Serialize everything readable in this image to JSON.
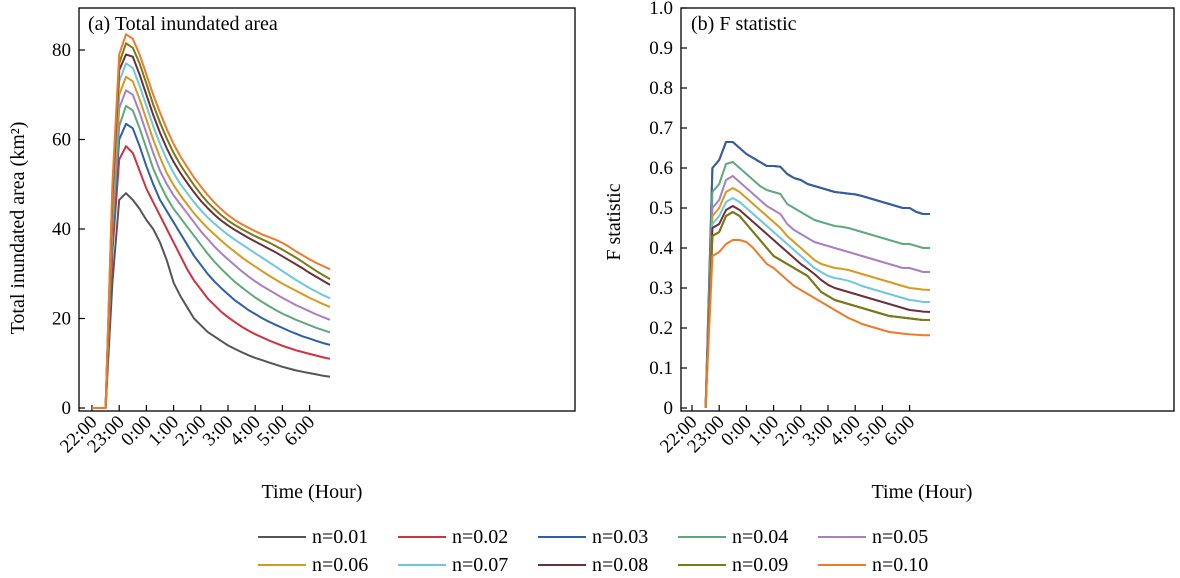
{
  "chart_data": [
    {
      "type": "line",
      "title": "(a) Total inundated area",
      "xlabel": "Time (Hour)",
      "ylabel": "Total inundated area (km²)",
      "x": [
        "22:00",
        "22:15",
        "22:30",
        "22:45",
        "23:00",
        "23:15",
        "23:30",
        "23:45",
        "0:00",
        "0:15",
        "0:30",
        "0:45",
        "1:00",
        "1:15",
        "1:30",
        "1:45",
        "2:00",
        "2:15",
        "2:30",
        "2:45",
        "3:00",
        "3:15",
        "3:30",
        "3:45",
        "4:00",
        "4:15",
        "4:30",
        "4:45",
        "5:00",
        "5:15",
        "5:30",
        "5:45",
        "6:00",
        "6:15",
        "6:30",
        "6:45"
      ],
      "xticks": [
        "22:00",
        "23:00",
        "0:00",
        "1:00",
        "2:00",
        "3:00",
        "4:00",
        "5:00",
        "6:00"
      ],
      "yticks": [
        0,
        20,
        40,
        60,
        80
      ],
      "ylim": [
        0,
        88
      ],
      "grid": false,
      "series": [
        {
          "name": "n=0.01",
          "values": [
            0,
            0,
            0,
            28,
            46.5,
            48,
            46.5,
            44.5,
            42,
            40,
            37,
            33,
            28,
            25,
            22.5,
            20,
            18.5,
            17,
            16,
            15,
            14,
            13.2,
            12.5,
            11.8,
            11.2,
            10.7,
            10.2,
            9.7,
            9.2,
            8.8,
            8.4,
            8.1,
            7.8,
            7.5,
            7.2,
            7.0
          ]
        },
        {
          "name": "n=0.02",
          "values": [
            0,
            0,
            0,
            35,
            55.5,
            58.5,
            57,
            53,
            49,
            46,
            43,
            40,
            37,
            34,
            31,
            28.5,
            26.5,
            24.5,
            23,
            21.5,
            20.3,
            19.2,
            18.2,
            17.3,
            16.5,
            15.8,
            15.1,
            14.5,
            13.9,
            13.4,
            12.9,
            12.5,
            12.1,
            11.7,
            11.3,
            11.0
          ]
        },
        {
          "name": "n=0.03",
          "values": [
            0,
            0,
            0,
            38,
            60,
            63.5,
            62.5,
            58.5,
            54,
            50,
            46.5,
            44,
            41.5,
            39,
            36.5,
            34,
            32,
            30,
            28.3,
            26.8,
            25.4,
            24.1,
            23,
            21.9,
            21,
            20.1,
            19.3,
            18.6,
            17.9,
            17.2,
            16.6,
            16.0,
            15.5,
            15.0,
            14.5,
            14.1
          ]
        },
        {
          "name": "n=0.04",
          "values": [
            0,
            0,
            0,
            40,
            63,
            67.5,
            66.5,
            62.5,
            58,
            53.5,
            50,
            47,
            44.5,
            42.5,
            40.5,
            38.5,
            36.5,
            34.5,
            32.7,
            31.1,
            29.6,
            28.2,
            27,
            25.8,
            24.7,
            23.7,
            22.8,
            21.9,
            21.1,
            20.4,
            19.7,
            19.1,
            18.5,
            17.9,
            17.4,
            16.9
          ]
        },
        {
          "name": "n=0.05",
          "values": [
            0,
            0,
            0,
            42,
            67,
            71,
            70,
            66,
            61.5,
            57,
            53,
            50,
            47.5,
            45.5,
            43.5,
            41.5,
            39.5,
            37.8,
            36.1,
            34.6,
            33.2,
            31.9,
            30.6,
            29.4,
            28.3,
            27.3,
            26.4,
            25.5,
            24.6,
            23.8,
            23.0,
            22.3,
            21.6,
            20.9,
            20.3,
            19.7
          ]
        },
        {
          "name": "n=0.06",
          "values": [
            0,
            0,
            0,
            44,
            70,
            74,
            73,
            69,
            64.5,
            60,
            56,
            52.5,
            49.8,
            47.5,
            45.5,
            43.5,
            41.8,
            40.2,
            38.8,
            37.4,
            36.1,
            34.9,
            33.7,
            32.6,
            31.6,
            30.6,
            29.6,
            28.7,
            27.8,
            27.0,
            26.2,
            25.4,
            24.6,
            23.9,
            23.2,
            22.6
          ]
        },
        {
          "name": "n=0.07",
          "values": [
            0,
            0,
            0,
            45.5,
            73,
            77,
            76,
            72,
            67.5,
            63,
            59,
            55.5,
            52.5,
            50,
            48,
            46,
            44.2,
            42.6,
            41.2,
            39.9,
            38.7,
            37.6,
            36.6,
            35.6,
            34.6,
            33.6,
            32.6,
            31.6,
            30.6,
            29.6,
            28.6,
            27.7,
            26.8,
            26.0,
            25.2,
            24.5
          ]
        },
        {
          "name": "n=0.08",
          "values": [
            0,
            0,
            0,
            47,
            75.5,
            79,
            78.5,
            74.5,
            70,
            65.5,
            61.5,
            58,
            55,
            52.5,
            50.3,
            48.2,
            46.3,
            44.7,
            43.2,
            41.9,
            40.8,
            39.8,
            38.9,
            38,
            37.2,
            36.4,
            35.6,
            34.8,
            33.9,
            33,
            32.1,
            31.2,
            30.2,
            29.3,
            28.4,
            27.5
          ]
        },
        {
          "name": "n=0.09",
          "values": [
            0,
            0,
            0,
            48.5,
            77,
            81.5,
            80.5,
            77,
            72.5,
            67.8,
            63.8,
            60.2,
            57,
            54.3,
            52,
            49.8,
            47.8,
            46,
            44.5,
            43.1,
            41.9,
            40.9,
            40,
            39.2,
            38.4,
            37.7,
            37,
            36.2,
            35.4,
            34.5,
            33.6,
            32.6,
            31.6,
            30.6,
            29.7,
            28.8
          ]
        },
        {
          "name": "n=0.10",
          "values": [
            0,
            0,
            0,
            50,
            79,
            83.5,
            82.5,
            79,
            74.5,
            70,
            66,
            62.3,
            59,
            56.2,
            53.8,
            51.5,
            49.5,
            47.6,
            45.9,
            44.4,
            43.1,
            42,
            41.1,
            40.3,
            39.5,
            38.8,
            38.2,
            37.6,
            36.9,
            36,
            35,
            34.1,
            33.2,
            32.4,
            31.7,
            31.0
          ]
        }
      ]
    },
    {
      "type": "line",
      "title": "(b) F statistic",
      "xlabel": "Time (Hour)",
      "ylabel": "F statistic",
      "x": [
        "22:00",
        "22:15",
        "22:30",
        "22:45",
        "23:00",
        "23:15",
        "23:30",
        "23:45",
        "0:00",
        "0:15",
        "0:30",
        "0:45",
        "1:00",
        "1:15",
        "1:30",
        "1:45",
        "2:00",
        "2:15",
        "2:30",
        "2:45",
        "3:00",
        "3:15",
        "3:30",
        "3:45",
        "4:00",
        "4:15",
        "4:30",
        "4:45",
        "5:00",
        "5:15",
        "5:30",
        "5:45",
        "6:00",
        "6:15",
        "6:30",
        "6:45"
      ],
      "xticks": [
        "22:00",
        "23:00",
        "0:00",
        "1:00",
        "2:00",
        "3:00",
        "4:00",
        "5:00",
        "6:00"
      ],
      "yticks": [
        0,
        0.1,
        0.2,
        0.3,
        0.4,
        0.5,
        0.6,
        0.7,
        0.8,
        0.9,
        1.0
      ],
      "ytick_labels": [
        "0",
        "0.1",
        "0.2",
        "0.3",
        "0.4",
        "0.5",
        "0.6",
        "0.7",
        "0.8",
        "0.9",
        "1.0"
      ],
      "ylim": [
        0,
        1.0
      ],
      "grid": false,
      "series": [
        {
          "name": "n=0.01",
          "values": [
            null,
            null,
            0,
            0.43,
            0.44,
            0.48,
            0.49,
            0.48,
            0.46,
            0.44,
            0.42,
            0.4,
            0.38,
            0.37,
            0.36,
            0.35,
            0.34,
            0.33,
            0.31,
            0.29,
            0.28,
            0.27,
            0.265,
            0.26,
            0.255,
            0.25,
            0.245,
            0.24,
            0.235,
            0.23,
            0.228,
            0.226,
            0.224,
            0.222,
            0.22,
            0.22
          ]
        },
        {
          "name": "n=0.02",
          "values": [
            null,
            null,
            0,
            0.6,
            0.62,
            0.665,
            0.665,
            0.65,
            0.635,
            0.625,
            0.615,
            0.605,
            0.605,
            0.603,
            0.585,
            0.575,
            0.57,
            0.56,
            0.555,
            0.55,
            0.545,
            0.54,
            0.538,
            0.536,
            0.534,
            0.53,
            0.525,
            0.52,
            0.515,
            0.51,
            0.505,
            0.5,
            0.5,
            0.49,
            0.485,
            0.485
          ]
        },
        {
          "name": "n=0.03",
          "values": [
            null,
            null,
            0,
            0.6,
            0.62,
            0.665,
            0.665,
            0.65,
            0.635,
            0.625,
            0.615,
            0.605,
            0.605,
            0.603,
            0.585,
            0.575,
            0.57,
            0.56,
            0.555,
            0.55,
            0.545,
            0.54,
            0.538,
            0.536,
            0.534,
            0.53,
            0.525,
            0.52,
            0.515,
            0.51,
            0.505,
            0.5,
            0.5,
            0.49,
            0.485,
            0.485
          ]
        },
        {
          "name": "n=0.04",
          "values": [
            null,
            null,
            0,
            0.54,
            0.56,
            0.61,
            0.615,
            0.6,
            0.585,
            0.57,
            0.555,
            0.545,
            0.54,
            0.535,
            0.51,
            0.5,
            0.49,
            0.48,
            0.47,
            0.465,
            0.46,
            0.455,
            0.453,
            0.45,
            0.445,
            0.44,
            0.435,
            0.43,
            0.425,
            0.42,
            0.415,
            0.41,
            0.41,
            0.405,
            0.4,
            0.4
          ]
        },
        {
          "name": "n=0.05",
          "values": [
            null,
            null,
            0,
            0.5,
            0.52,
            0.57,
            0.58,
            0.565,
            0.55,
            0.535,
            0.52,
            0.505,
            0.495,
            0.485,
            0.46,
            0.445,
            0.435,
            0.425,
            0.415,
            0.41,
            0.405,
            0.4,
            0.395,
            0.39,
            0.385,
            0.38,
            0.375,
            0.37,
            0.365,
            0.36,
            0.355,
            0.35,
            0.35,
            0.345,
            0.34,
            0.34
          ]
        },
        {
          "name": "n=0.06",
          "values": [
            null,
            null,
            0,
            0.48,
            0.5,
            0.54,
            0.55,
            0.54,
            0.525,
            0.51,
            0.495,
            0.48,
            0.465,
            0.45,
            0.43,
            0.415,
            0.4,
            0.385,
            0.37,
            0.36,
            0.355,
            0.35,
            0.348,
            0.345,
            0.34,
            0.335,
            0.33,
            0.325,
            0.32,
            0.315,
            0.31,
            0.305,
            0.3,
            0.298,
            0.296,
            0.295
          ]
        },
        {
          "name": "n=0.07",
          "values": [
            null,
            null,
            0,
            0.46,
            0.48,
            0.515,
            0.525,
            0.515,
            0.5,
            0.485,
            0.47,
            0.455,
            0.44,
            0.425,
            0.41,
            0.395,
            0.38,
            0.365,
            0.35,
            0.34,
            0.33,
            0.325,
            0.322,
            0.318,
            0.312,
            0.305,
            0.3,
            0.295,
            0.29,
            0.285,
            0.28,
            0.275,
            0.27,
            0.268,
            0.265,
            0.265
          ]
        },
        {
          "name": "n=0.08",
          "values": [
            null,
            null,
            0,
            0.45,
            0.46,
            0.495,
            0.505,
            0.495,
            0.48,
            0.465,
            0.45,
            0.435,
            0.42,
            0.405,
            0.39,
            0.375,
            0.36,
            0.348,
            0.335,
            0.32,
            0.308,
            0.3,
            0.295,
            0.29,
            0.285,
            0.28,
            0.275,
            0.27,
            0.265,
            0.26,
            0.255,
            0.25,
            0.245,
            0.243,
            0.241,
            0.24
          ]
        },
        {
          "name": "n=0.09",
          "values": [
            null,
            null,
            0,
            0.43,
            0.44,
            0.48,
            0.49,
            0.48,
            0.46,
            0.44,
            0.42,
            0.4,
            0.38,
            0.37,
            0.36,
            0.35,
            0.34,
            0.33,
            0.31,
            0.29,
            0.28,
            0.27,
            0.265,
            0.26,
            0.255,
            0.25,
            0.245,
            0.24,
            0.235,
            0.23,
            0.228,
            0.226,
            0.224,
            0.222,
            0.22,
            0.22
          ]
        },
        {
          "name": "n=0.10",
          "values": [
            null,
            null,
            0,
            0.38,
            0.39,
            0.41,
            0.42,
            0.42,
            0.415,
            0.4,
            0.38,
            0.36,
            0.35,
            0.335,
            0.32,
            0.305,
            0.295,
            0.285,
            0.275,
            0.265,
            0.255,
            0.245,
            0.235,
            0.225,
            0.218,
            0.21,
            0.205,
            0.2,
            0.195,
            0.19,
            0.188,
            0.186,
            0.184,
            0.183,
            0.182,
            0.182
          ]
        }
      ]
    }
  ],
  "legend": {
    "entries": [
      "n=0.01",
      "n=0.02",
      "n=0.03",
      "n=0.04",
      "n=0.05",
      "n=0.06",
      "n=0.07",
      "n=0.08",
      "n=0.09",
      "n=0.10"
    ],
    "colors": [
      "#555555",
      "#d2313f",
      "#2d5fa6",
      "#5ea87e",
      "#a97fc2",
      "#d59a1f",
      "#6fc6dd",
      "#6b2f3a",
      "#7a7a12",
      "#ee7a2a"
    ]
  }
}
